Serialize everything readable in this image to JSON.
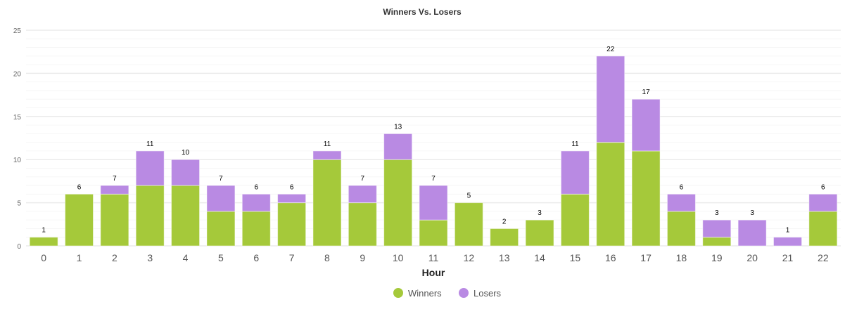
{
  "chart_data": {
    "type": "bar",
    "stacked": true,
    "title": "Winners Vs. Losers",
    "xlabel": "Hour",
    "ylabel": "",
    "ylim": [
      0,
      25
    ],
    "yticks": [
      0,
      5,
      10,
      15,
      20,
      25
    ],
    "grid": true,
    "legend_position": "bottom",
    "categories": [
      "0",
      "1",
      "2",
      "3",
      "4",
      "5",
      "6",
      "7",
      "8",
      "9",
      "10",
      "11",
      "12",
      "13",
      "14",
      "15",
      "16",
      "17",
      "18",
      "19",
      "20",
      "21",
      "22"
    ],
    "series": [
      {
        "name": "Winners",
        "color": "#a5c93a",
        "values": [
          1,
          6,
          6,
          7,
          7,
          4,
          4,
          5,
          10,
          5,
          10,
          3,
          5,
          2,
          3,
          6,
          12,
          11,
          4,
          1,
          0,
          0,
          4
        ]
      },
      {
        "name": "Losers",
        "color": "#b98ae3",
        "values": [
          0,
          0,
          1,
          4,
          3,
          3,
          2,
          1,
          1,
          2,
          3,
          4,
          0,
          0,
          0,
          5,
          10,
          6,
          2,
          2,
          3,
          1,
          2
        ]
      }
    ],
    "totals": [
      1,
      6,
      7,
      11,
      10,
      7,
      6,
      6,
      11,
      7,
      13,
      7,
      5,
      2,
      3,
      11,
      22,
      17,
      6,
      3,
      3,
      1,
      6
    ]
  }
}
